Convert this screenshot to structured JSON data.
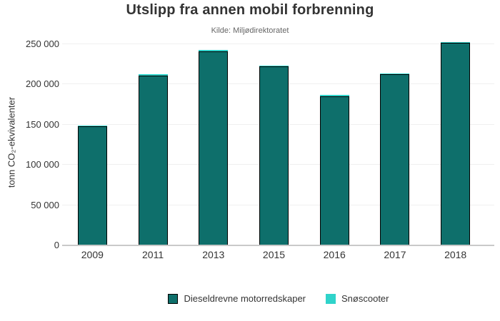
{
  "chart_data": {
    "type": "bar",
    "stacked": true,
    "title": "Utslipp fra annen mobil forbrenning",
    "subtitle": "Kilde: Miljødirektoratet",
    "ylabel": "tonn CO₂-ekvivalenter",
    "xlabel": "",
    "categories": [
      "2009",
      "2011",
      "2013",
      "2015",
      "2016",
      "2017",
      "2018"
    ],
    "series": [
      {
        "name": "Dieseldrevne motorredskaper",
        "color": "#0e6f6b",
        "border_color": "#000000",
        "values": [
          148000,
          211000,
          241000,
          222500,
          185500,
          212500,
          251500
        ]
      },
      {
        "name": "Snøscooter",
        "color": "#2fd3ca",
        "values": [
          1000,
          1500,
          1500,
          1000,
          1500,
          1500,
          1500
        ]
      }
    ],
    "ylim": [
      0,
      250000
    ],
    "yticks": [
      {
        "value": 0,
        "label": "0"
      },
      {
        "value": 50000,
        "label": "50 000"
      },
      {
        "value": 100000,
        "label": "100 000"
      },
      {
        "value": 150000,
        "label": "150 000"
      },
      {
        "value": 200000,
        "label": "200 000"
      },
      {
        "value": 250000,
        "label": "250 000"
      }
    ],
    "grid": "horizontal",
    "legend_position": "bottom",
    "colors": {
      "title_text": "#333333",
      "subtitle_text": "#666666",
      "tick_text": "#333333",
      "axis_line": "#c9c9c9",
      "gridline": "#f0f0f0",
      "background": "#ffffff"
    }
  }
}
